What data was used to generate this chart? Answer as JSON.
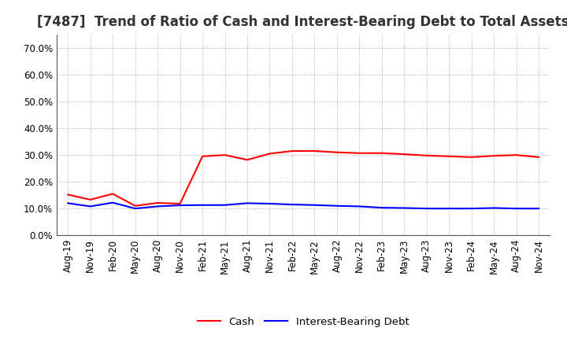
{
  "title": "[7487]  Trend of Ratio of Cash and Interest-Bearing Debt to Total Assets",
  "x_labels": [
    "Aug-19",
    "Nov-19",
    "Feb-20",
    "May-20",
    "Aug-20",
    "Nov-20",
    "Feb-21",
    "May-21",
    "Aug-21",
    "Nov-21",
    "Feb-22",
    "May-22",
    "Aug-22",
    "Nov-22",
    "Feb-23",
    "May-23",
    "Aug-23",
    "Nov-23",
    "Feb-24",
    "May-24",
    "Aug-24",
    "Nov-24"
  ],
  "cash": [
    0.152,
    0.133,
    0.155,
    0.11,
    0.121,
    0.118,
    0.295,
    0.3,
    0.282,
    0.305,
    0.315,
    0.315,
    0.31,
    0.307,
    0.307,
    0.303,
    0.298,
    0.295,
    0.292,
    0.297,
    0.3,
    0.292
  ],
  "interest_bearing_debt": [
    0.12,
    0.108,
    0.122,
    0.1,
    0.108,
    0.112,
    0.113,
    0.113,
    0.12,
    0.118,
    0.115,
    0.113,
    0.11,
    0.108,
    0.103,
    0.102,
    0.1,
    0.1,
    0.1,
    0.102,
    0.1,
    0.1
  ],
  "cash_color": "#FF0000",
  "debt_color": "#0000FF",
  "ylim": [
    0.0,
    0.75
  ],
  "yticks": [
    0.0,
    0.1,
    0.2,
    0.3,
    0.4,
    0.5,
    0.6,
    0.7
  ],
  "background_color": "#FFFFFF",
  "grid_color": "#999999",
  "legend_cash": "Cash",
  "legend_debt": "Interest-Bearing Debt",
  "title_fontsize": 12,
  "tick_fontsize": 8.5,
  "legend_fontsize": 9.5
}
